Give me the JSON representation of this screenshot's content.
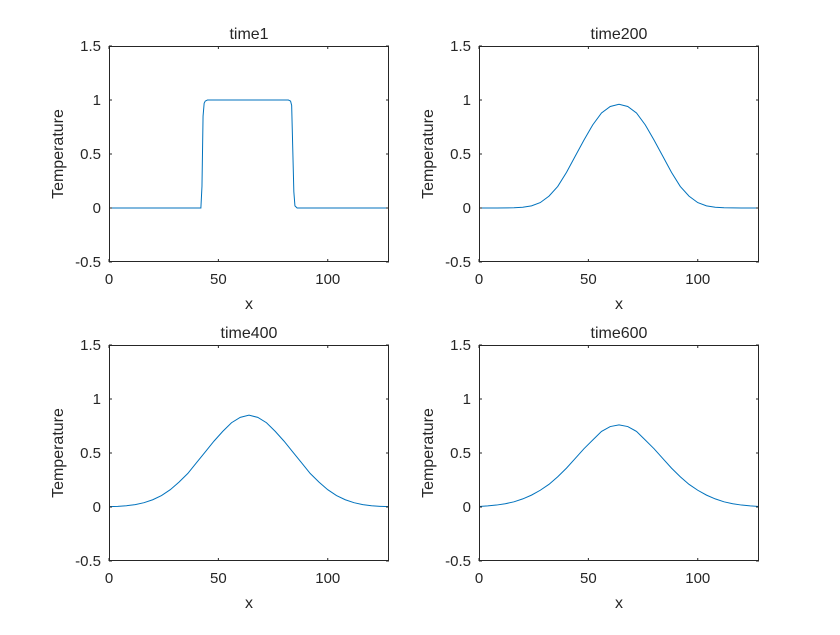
{
  "figure": {
    "background": "#ffffff"
  },
  "style": {
    "line_color": "#0072bd",
    "axis_color": "#262626"
  },
  "chart_data": [
    {
      "type": "line",
      "title": "time1",
      "xlabel": "x",
      "ylabel": "Temperature",
      "xlim": [
        0,
        128
      ],
      "ylim": [
        -0.5,
        1.5
      ],
      "xticks": [
        0,
        50,
        100
      ],
      "yticks": [
        -0.5,
        0,
        0.5,
        1,
        1.5
      ],
      "xtick_labels": [
        "0",
        "50",
        "100"
      ],
      "ytick_labels": [
        "-0.5",
        "0",
        "0.5",
        "1",
        "1.5"
      ],
      "grid": false,
      "series": [
        {
          "x": [
            0,
            42,
            42.5,
            43,
            43.5,
            44,
            45,
            46,
            82,
            83,
            83.5,
            84,
            84.5,
            85,
            86,
            128
          ],
          "y": [
            0,
            0,
            0.2,
            0.85,
            0.97,
            0.99,
            1,
            1,
            1,
            0.99,
            0.95,
            0.55,
            0.15,
            0.02,
            0,
            0
          ]
        }
      ]
    },
    {
      "type": "line",
      "title": "time200",
      "xlabel": "x",
      "ylabel": "Temperature",
      "xlim": [
        0,
        128
      ],
      "ylim": [
        -0.5,
        1.5
      ],
      "xticks": [
        0,
        50,
        100
      ],
      "yticks": [
        -0.5,
        0,
        0.5,
        1,
        1.5
      ],
      "xtick_labels": [
        "0",
        "50",
        "100"
      ],
      "ytick_labels": [
        "-0.5",
        "0",
        "0.5",
        "1",
        "1.5"
      ],
      "grid": false,
      "series": [
        {
          "x": [
            0,
            8,
            16,
            20,
            24,
            28,
            32,
            36,
            40,
            44,
            48,
            52,
            56,
            60,
            64,
            68,
            72,
            76,
            80,
            84,
            88,
            92,
            96,
            100,
            104,
            108,
            112,
            120,
            128
          ],
          "y": [
            0,
            0,
            0.002,
            0.007,
            0.02,
            0.05,
            0.11,
            0.2,
            0.33,
            0.48,
            0.63,
            0.77,
            0.88,
            0.94,
            0.96,
            0.94,
            0.88,
            0.77,
            0.63,
            0.48,
            0.33,
            0.2,
            0.11,
            0.05,
            0.02,
            0.007,
            0.002,
            0,
            0
          ]
        }
      ]
    },
    {
      "type": "line",
      "title": "time400",
      "xlabel": "x",
      "ylabel": "Temperature",
      "xlim": [
        0,
        128
      ],
      "ylim": [
        -0.5,
        1.5
      ],
      "xticks": [
        0,
        50,
        100
      ],
      "yticks": [
        -0.5,
        0,
        0.5,
        1,
        1.5
      ],
      "xtick_labels": [
        "0",
        "50",
        "100"
      ],
      "ytick_labels": [
        "-0.5",
        "0",
        "0.5",
        "1",
        "1.5"
      ],
      "grid": false,
      "series": [
        {
          "x": [
            0,
            4,
            8,
            12,
            16,
            20,
            24,
            28,
            32,
            36,
            40,
            44,
            48,
            52,
            56,
            60,
            64,
            68,
            72,
            76,
            80,
            84,
            88,
            92,
            96,
            100,
            104,
            108,
            112,
            116,
            120,
            124,
            128
          ],
          "y": [
            0.003,
            0.006,
            0.012,
            0.022,
            0.04,
            0.067,
            0.106,
            0.16,
            0.23,
            0.31,
            0.41,
            0.51,
            0.61,
            0.7,
            0.78,
            0.83,
            0.85,
            0.83,
            0.78,
            0.7,
            0.61,
            0.51,
            0.41,
            0.31,
            0.23,
            0.16,
            0.106,
            0.067,
            0.04,
            0.022,
            0.012,
            0.006,
            0.003
          ]
        }
      ]
    },
    {
      "type": "line",
      "title": "time600",
      "xlabel": "x",
      "ylabel": "Temperature",
      "xlim": [
        0,
        128
      ],
      "ylim": [
        -0.5,
        1.5
      ],
      "xticks": [
        0,
        50,
        100
      ],
      "yticks": [
        -0.5,
        0,
        0.5,
        1,
        1.5
      ],
      "xtick_labels": [
        "0",
        "50",
        "100"
      ],
      "ytick_labels": [
        "-0.5",
        "0",
        "0.5",
        "1",
        "1.5"
      ],
      "grid": false,
      "series": [
        {
          "x": [
            0,
            4,
            8,
            12,
            16,
            20,
            24,
            28,
            32,
            36,
            40,
            44,
            48,
            52,
            56,
            60,
            64,
            68,
            72,
            76,
            80,
            84,
            88,
            92,
            96,
            100,
            104,
            108,
            112,
            116,
            120,
            124,
            128
          ],
          "y": [
            0.005,
            0.01,
            0.018,
            0.03,
            0.048,
            0.075,
            0.11,
            0.155,
            0.21,
            0.28,
            0.36,
            0.45,
            0.54,
            0.62,
            0.7,
            0.745,
            0.76,
            0.745,
            0.7,
            0.62,
            0.54,
            0.45,
            0.36,
            0.28,
            0.21,
            0.155,
            0.11,
            0.075,
            0.048,
            0.03,
            0.018,
            0.01,
            0.005
          ]
        }
      ]
    }
  ]
}
